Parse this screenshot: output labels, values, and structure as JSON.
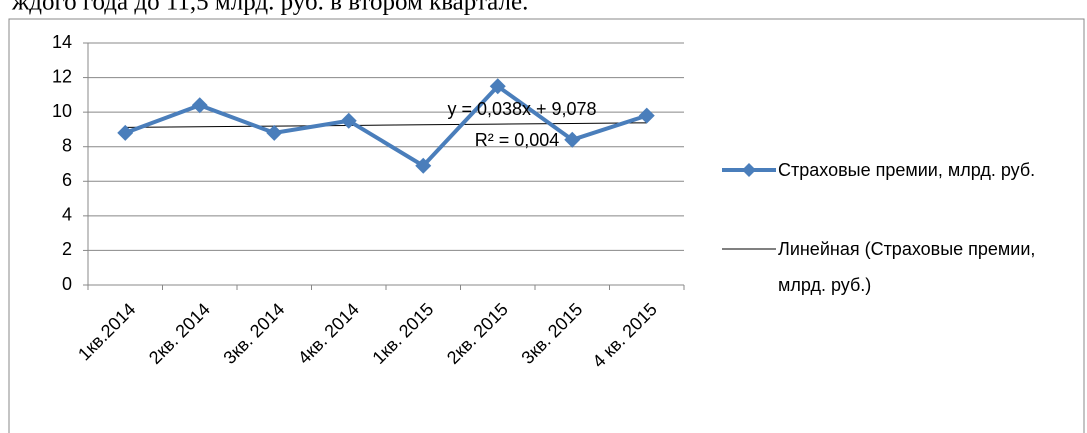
{
  "text_above": "ждого года до 11,5 млрд. руб. в втором квартале.",
  "chart_data": {
    "type": "line",
    "categories": [
      "1кв.2014",
      "2кв. 2014",
      "3кв. 2014",
      "4кв. 2014",
      "1кв. 2015",
      "2кв. 2015",
      "3кв. 2015",
      "4 кв. 2015"
    ],
    "series": [
      {
        "name": "Страховые премии, млрд. руб.",
        "color": "#4a7ebb",
        "marker": "diamond",
        "values": [
          8.8,
          10.4,
          8.8,
          9.5,
          6.9,
          11.5,
          8.4,
          9.8
        ]
      },
      {
        "name": "Линейная (Страховые премии, млрд. руб.)",
        "color": "#000000",
        "values": [
          9.116,
          9.154,
          9.192,
          9.23,
          9.268,
          9.306,
          9.344,
          9.382
        ]
      }
    ],
    "annotations": [
      "y = 0,038x + 9,078",
      "R² = 0,004"
    ],
    "ylim": [
      0,
      14
    ],
    "yticks": [
      0,
      2,
      4,
      6,
      8,
      10,
      12,
      14
    ],
    "grid": true,
    "legend": "right"
  }
}
